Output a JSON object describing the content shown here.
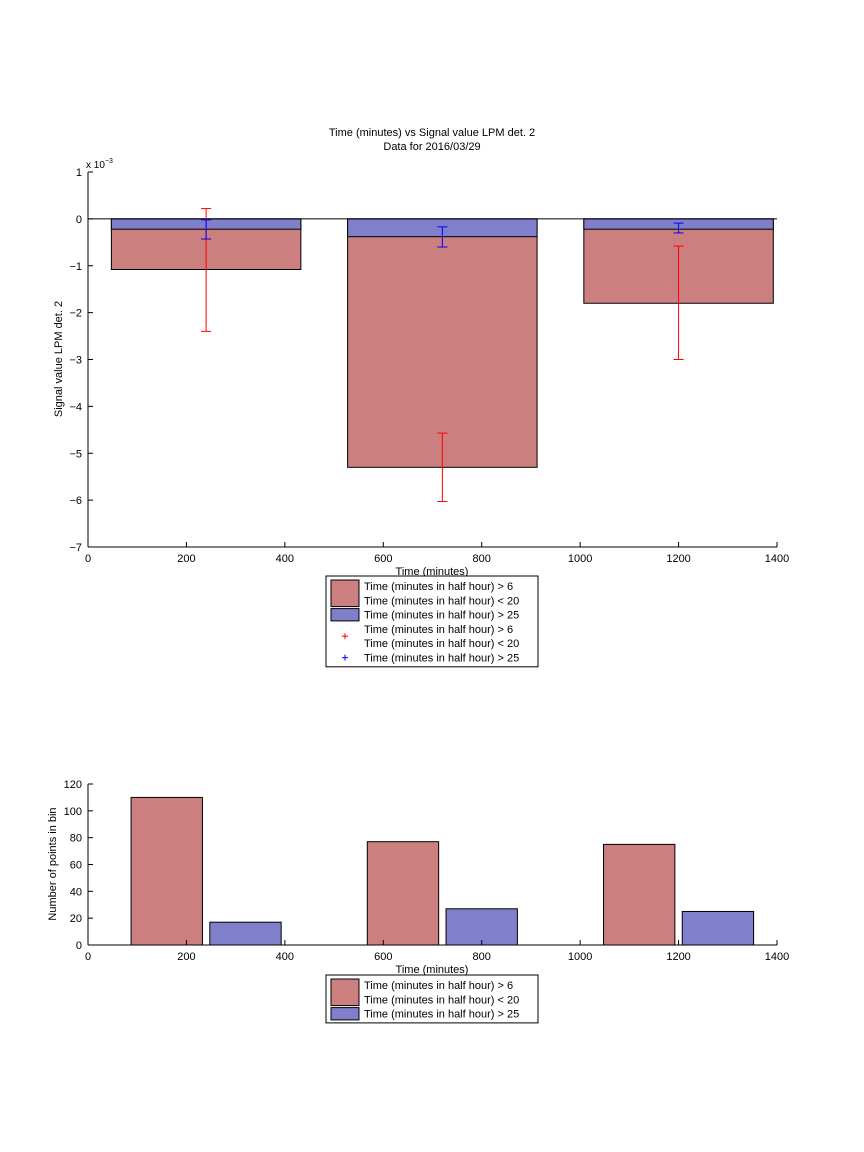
{
  "chart_data": [
    {
      "type": "bar",
      "title": "Time (minutes) vs Signal value LPM det. 2",
      "subtitle": "Data for 2016/03/29",
      "xlabel": "Time (minutes)",
      "ylabel": "Signal value LPM det. 2",
      "exponent_label": "x 10",
      "exponent_power": "−3",
      "xlim": [
        0,
        1400
      ],
      "ylim": [
        -7,
        1
      ],
      "x_ticks": [
        0,
        200,
        400,
        600,
        800,
        1000,
        1200,
        1400
      ],
      "x_tick_labels": [
        "0",
        "200",
        "400",
        "600",
        "800",
        "1000",
        "1200",
        "1400"
      ],
      "y_ticks": [
        1,
        0,
        -1,
        -2,
        -3,
        -4,
        -5,
        -6,
        -7
      ],
      "y_tick_labels": [
        "1",
        "0",
        "−1",
        "−2",
        "−3",
        "−4",
        "−5",
        "−6",
        "−7"
      ],
      "bar_width": 385,
      "x": [
        240,
        720,
        1200
      ],
      "series": [
        {
          "name": "Time (minutes in half hour) > 6\nTime (minutes in half hour) < 20",
          "color": "#cc7f7f",
          "values": [
            -1.08,
            -5.3,
            -1.8
          ],
          "errorbar_color": "#ff0000",
          "err_low": [
            -2.4,
            -6.03,
            -3.0
          ],
          "err_high": [
            0.22,
            -4.57,
            -0.58
          ]
        },
        {
          "name": "Time (minutes in half hour) > 25",
          "color": "#7f7fcc",
          "values": [
            -0.22,
            -0.38,
            -0.22
          ],
          "errorbar_color": "#0000ff",
          "err_low": [
            -0.43,
            -0.6,
            -0.3
          ],
          "err_high": [
            -0.02,
            -0.17,
            -0.09
          ]
        }
      ],
      "legend": {
        "placement": "below",
        "entries": [
          {
            "kind": "patch",
            "color": "#cc7f7f",
            "lines": [
              "Time (minutes in half hour) > 6",
              "Time (minutes in half hour) < 20"
            ]
          },
          {
            "kind": "patch",
            "color": "#7f7fcc",
            "lines": [
              "Time (minutes in half hour) > 25"
            ]
          },
          {
            "kind": "marker",
            "color": "#ff0000",
            "lines": [
              "Time (minutes in half hour) > 6",
              "Time (minutes in half hour) < 20"
            ]
          },
          {
            "kind": "marker",
            "color": "#0000ff",
            "lines": [
              "Time (minutes in half hour) > 25"
            ]
          }
        ]
      }
    },
    {
      "type": "bar",
      "title": "",
      "xlabel": "Time (minutes)",
      "ylabel": "Number of points in bin",
      "xlim": [
        0,
        1400
      ],
      "ylim": [
        0,
        120
      ],
      "x_ticks": [
        0,
        200,
        400,
        600,
        800,
        1000,
        1200,
        1400
      ],
      "x_tick_labels": [
        "0",
        "200",
        "400",
        "600",
        "800",
        "1000",
        "1200",
        "1400"
      ],
      "y_ticks": [
        0,
        20,
        40,
        60,
        80,
        100,
        120
      ],
      "y_tick_labels": [
        "0",
        "20",
        "40",
        "60",
        "80",
        "100",
        "120"
      ],
      "bar_width": 145,
      "x": [
        160,
        640,
        1120
      ],
      "series_offset": 160,
      "series": [
        {
          "name": "Time (minutes in half hour) > 6\nTime (minutes in half hour) < 20",
          "color": "#cc7f7f",
          "values": [
            110,
            77,
            75
          ]
        },
        {
          "name": "Time (minutes in half hour) > 25",
          "color": "#7f7fcc",
          "values": [
            17,
            27,
            25
          ]
        }
      ],
      "legend": {
        "placement": "below",
        "entries": [
          {
            "kind": "patch",
            "color": "#cc7f7f",
            "lines": [
              "Time (minutes in half hour) > 6",
              "Time (minutes in half hour) < 20"
            ]
          },
          {
            "kind": "patch",
            "color": "#7f7fcc",
            "lines": [
              "Time (minutes in half hour) > 25"
            ]
          }
        ]
      }
    }
  ]
}
